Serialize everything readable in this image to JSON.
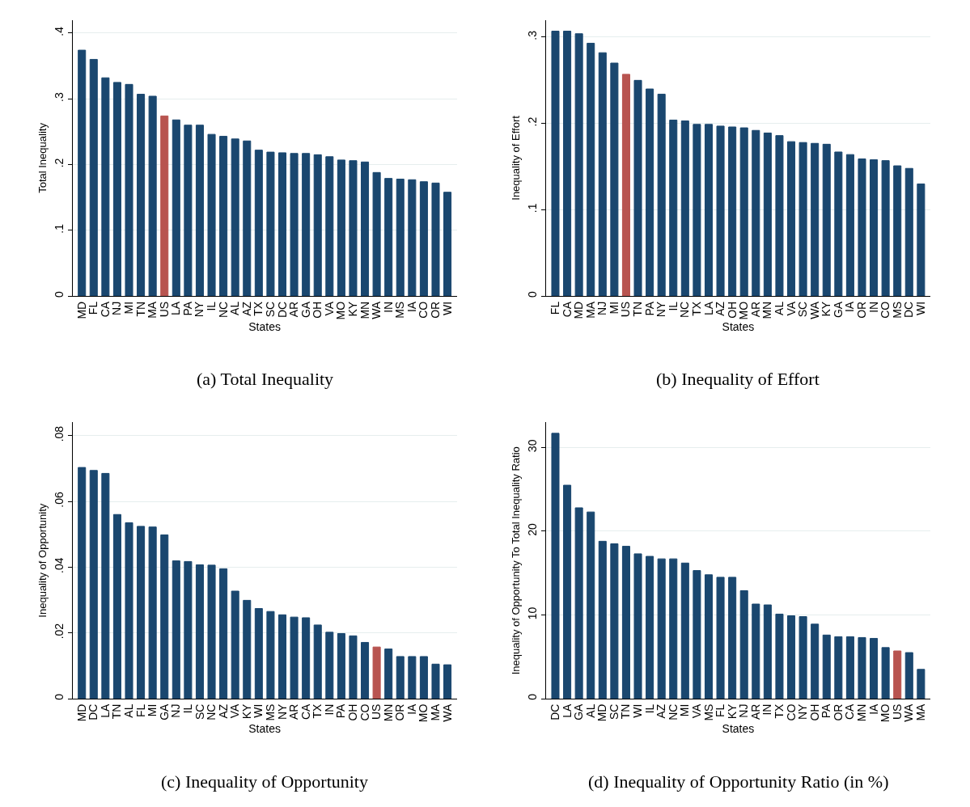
{
  "chart_data": [
    {
      "type": "bar",
      "title": "(a) Total Inequality",
      "xlabel": "States",
      "ylabel": "Total Inequality",
      "categories": [
        "MD",
        "FL",
        "CA",
        "NJ",
        "MI",
        "TN",
        "MA",
        "US",
        "LA",
        "PA",
        "NY",
        "IL",
        "NC",
        "AL",
        "AZ",
        "TX",
        "SC",
        "DC",
        "AR",
        "GA",
        "OH",
        "VA",
        "MO",
        "KY",
        "MN",
        "WA",
        "IN",
        "MS",
        "IA",
        "CO",
        "OR",
        "WI"
      ],
      "values": [
        0.374,
        0.36,
        0.332,
        0.325,
        0.322,
        0.307,
        0.304,
        0.274,
        0.268,
        0.26,
        0.26,
        0.246,
        0.243,
        0.239,
        0.236,
        0.222,
        0.219,
        0.218,
        0.217,
        0.217,
        0.215,
        0.212,
        0.207,
        0.206,
        0.204,
        0.188,
        0.179,
        0.178,
        0.177,
        0.174,
        0.172,
        0.158
      ],
      "colors": [
        "#1a476f",
        "#1a476f",
        "#1a476f",
        "#1a476f",
        "#1a476f",
        "#1a476f",
        "#1a476f",
        "#b85450",
        "#1a476f",
        "#1a476f",
        "#1a476f",
        "#1a476f",
        "#1a476f",
        "#1a476f",
        "#1a476f",
        "#1a476f",
        "#1a476f",
        "#1a476f",
        "#1a476f",
        "#1a476f",
        "#1a476f",
        "#1a476f",
        "#1a476f",
        "#1a476f",
        "#1a476f",
        "#1a476f",
        "#1a476f",
        "#1a476f",
        "#1a476f",
        "#1a476f",
        "#1a476f",
        "#1a476f"
      ],
      "ylim": [
        0,
        0.42
      ],
      "yticks": [
        0,
        {
          "value": 0.1,
          "label": ".1"
        },
        {
          "value": 0.2,
          "label": ".2"
        },
        {
          "value": 0.3,
          "label": ".3"
        },
        {
          "value": 0.4,
          "label": ".4"
        }
      ],
      "grid": "y"
    },
    {
      "type": "bar",
      "title": "(b) Inequality of Effort",
      "xlabel": "States",
      "ylabel": "Inequality of Effort",
      "categories": [
        "FL",
        "CA",
        "MD",
        "MA",
        "NJ",
        "MI",
        "US",
        "TN",
        "PA",
        "NY",
        "IL",
        "NC",
        "TX",
        "LA",
        "AZ",
        "OH",
        "MO",
        "AR",
        "MN",
        "AL",
        "VA",
        "SC",
        "WA",
        "KY",
        "GA",
        "IA",
        "OR",
        "IN",
        "CO",
        "MS",
        "DC",
        "WI"
      ],
      "values": [
        0.307,
        0.307,
        0.304,
        0.293,
        0.282,
        0.27,
        0.257,
        0.25,
        0.24,
        0.234,
        0.204,
        0.203,
        0.199,
        0.199,
        0.197,
        0.196,
        0.195,
        0.192,
        0.189,
        0.186,
        0.179,
        0.178,
        0.177,
        0.176,
        0.167,
        0.164,
        0.159,
        0.158,
        0.157,
        0.151,
        0.148,
        0.13
      ],
      "colors": [
        "#1a476f",
        "#1a476f",
        "#1a476f",
        "#1a476f",
        "#1a476f",
        "#1a476f",
        "#b85450",
        "#1a476f",
        "#1a476f",
        "#1a476f",
        "#1a476f",
        "#1a476f",
        "#1a476f",
        "#1a476f",
        "#1a476f",
        "#1a476f",
        "#1a476f",
        "#1a476f",
        "#1a476f",
        "#1a476f",
        "#1a476f",
        "#1a476f",
        "#1a476f",
        "#1a476f",
        "#1a476f",
        "#1a476f",
        "#1a476f",
        "#1a476f",
        "#1a476f",
        "#1a476f",
        "#1a476f",
        "#1a476f"
      ],
      "ylim": [
        0,
        0.32
      ],
      "yticks": [
        0,
        {
          "value": 0.1,
          "label": ".1"
        },
        {
          "value": 0.2,
          "label": ".2"
        },
        {
          "value": 0.3,
          "label": ".3"
        }
      ],
      "grid": "y"
    },
    {
      "type": "bar",
      "title": "(c) Inequality of Opportunity",
      "xlabel": "States",
      "ylabel": "Inequality of Opportunity",
      "categories": [
        "MD",
        "DC",
        "LA",
        "TN",
        "AL",
        "FL",
        "MI",
        "GA",
        "NJ",
        "IL",
        "SC",
        "NC",
        "AZ",
        "VA",
        "KY",
        "WI",
        "MS",
        "NY",
        "AR",
        "CA",
        "TX",
        "IN",
        "PA",
        "OH",
        "CO",
        "US",
        "MN",
        "OR",
        "IA",
        "MO",
        "MA",
        "WA"
      ],
      "values": [
        0.0703,
        0.0694,
        0.0685,
        0.056,
        0.0535,
        0.0524,
        0.0522,
        0.0498,
        0.0419,
        0.0417,
        0.0407,
        0.0406,
        0.0395,
        0.0327,
        0.0299,
        0.0274,
        0.0265,
        0.0255,
        0.0248,
        0.0246,
        0.0224,
        0.0202,
        0.0198,
        0.0191,
        0.0171,
        0.0157,
        0.0151,
        0.0128,
        0.0128,
        0.0128,
        0.0105,
        0.0103
      ],
      "colors": [
        "#1a476f",
        "#1a476f",
        "#1a476f",
        "#1a476f",
        "#1a476f",
        "#1a476f",
        "#1a476f",
        "#1a476f",
        "#1a476f",
        "#1a476f",
        "#1a476f",
        "#1a476f",
        "#1a476f",
        "#1a476f",
        "#1a476f",
        "#1a476f",
        "#1a476f",
        "#1a476f",
        "#1a476f",
        "#1a476f",
        "#1a476f",
        "#1a476f",
        "#1a476f",
        "#1a476f",
        "#1a476f",
        "#b85450",
        "#1a476f",
        "#1a476f",
        "#1a476f",
        "#1a476f",
        "#1a476f",
        "#1a476f"
      ],
      "ylim": [
        0,
        0.084
      ],
      "yticks": [
        0,
        {
          "value": 0.02,
          "label": ".02"
        },
        {
          "value": 0.04,
          "label": ".04"
        },
        {
          "value": 0.06,
          "label": ".06"
        },
        {
          "value": 0.08,
          "label": ".08"
        }
      ],
      "grid": "y"
    },
    {
      "type": "bar",
      "title": "(d) Inequality of Opportunity Ratio (in %)",
      "xlabel": "States",
      "ylabel": "Inequality of Opportunity To Total Inequality Ratio",
      "categories": [
        "DC",
        "LA",
        "GA",
        "AL",
        "MD",
        "SC",
        "TN",
        "WI",
        "IL",
        "AZ",
        "NC",
        "MI",
        "VA",
        "MS",
        "FL",
        "KY",
        "NJ",
        "AR",
        "IN",
        "TX",
        "CO",
        "NY",
        "OH",
        "PA",
        "OR",
        "CA",
        "MN",
        "IA",
        "MO",
        "US",
        "WA",
        "MA"
      ],
      "values": [
        31.7,
        25.5,
        22.8,
        22.3,
        18.8,
        18.5,
        18.2,
        17.3,
        17.0,
        16.7,
        16.7,
        16.2,
        15.3,
        14.8,
        14.5,
        14.5,
        12.9,
        11.3,
        11.2,
        10.1,
        9.9,
        9.8,
        8.9,
        7.6,
        7.4,
        7.4,
        7.3,
        7.2,
        6.1,
        5.7,
        5.5,
        3.5
      ],
      "colors": [
        "#1a476f",
        "#1a476f",
        "#1a476f",
        "#1a476f",
        "#1a476f",
        "#1a476f",
        "#1a476f",
        "#1a476f",
        "#1a476f",
        "#1a476f",
        "#1a476f",
        "#1a476f",
        "#1a476f",
        "#1a476f",
        "#1a476f",
        "#1a476f",
        "#1a476f",
        "#1a476f",
        "#1a476f",
        "#1a476f",
        "#1a476f",
        "#1a476f",
        "#1a476f",
        "#1a476f",
        "#1a476f",
        "#1a476f",
        "#1a476f",
        "#1a476f",
        "#1a476f",
        "#b85450",
        "#1a476f",
        "#1a476f"
      ],
      "ylim": [
        0,
        33
      ],
      "yticks": [
        0,
        10,
        20,
        30
      ],
      "grid": "y"
    }
  ]
}
